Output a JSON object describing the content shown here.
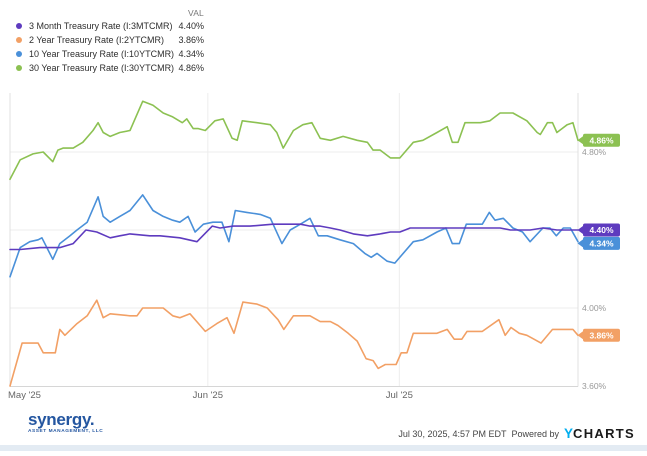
{
  "legend": {
    "val_header": "VAL",
    "items": [
      {
        "label": "3 Month Treasury Rate (I:3MTCMR)",
        "value": "4.40%",
        "color": "#5e3bbf"
      },
      {
        "label": "2 Year Treasury Rate (I:2YTCMR)",
        "value": "3.86%",
        "color": "#f2a065"
      },
      {
        "label": "10 Year Treasury Rate (I:10YTCMR)",
        "value": "4.34%",
        "color": "#4a90d9"
      },
      {
        "label": "30 Year Treasury Rate (I:30YTCMR)",
        "value": "4.86%",
        "color": "#8cc152"
      }
    ]
  },
  "chart_data": {
    "type": "line",
    "title": "",
    "xlabel": "",
    "ylabel": "",
    "x_axis": {
      "unit": "days since May 1 2025",
      "domain_days": [
        0,
        89
      ],
      "tick_labels": [
        "May '25",
        "Jun '25",
        "Jul '25"
      ],
      "tick_days": [
        0,
        31,
        61
      ]
    },
    "y_axis": {
      "unit": "%",
      "ylim": [
        3.55,
        5.1
      ],
      "tick_values": [
        4.8,
        4.4,
        4.0,
        3.6
      ],
      "tick_labels": [
        "4.80%",
        "4.40%",
        "4.00%",
        "3.60%"
      ],
      "side": "right"
    },
    "grid": true,
    "legend_position": "top-left",
    "series": [
      {
        "name": "30 Year Treasury Rate (I:30YTCMR)",
        "color": "#8cc152",
        "end_label": "4.86%",
        "end_value": 4.86,
        "points": [
          [
            0,
            4.66
          ],
          [
            1.6,
            4.76
          ],
          [
            3.6,
            4.79
          ],
          [
            5.2,
            4.8
          ],
          [
            6.7,
            4.75
          ],
          [
            7.5,
            4.81
          ],
          [
            8.3,
            4.82
          ],
          [
            9.9,
            4.82
          ],
          [
            11.4,
            4.85
          ],
          [
            13,
            4.91
          ],
          [
            13.8,
            4.95
          ],
          [
            14.6,
            4.9
          ],
          [
            15.7,
            4.88
          ],
          [
            17.2,
            4.9
          ],
          [
            18.8,
            4.91
          ],
          [
            20.8,
            5.06
          ],
          [
            22.4,
            5.04
          ],
          [
            24,
            5.0
          ],
          [
            25.5,
            4.98
          ],
          [
            27,
            4.95
          ],
          [
            27.7,
            4.97
          ],
          [
            28.7,
            4.92
          ],
          [
            29.5,
            4.92
          ],
          [
            30.6,
            4.91
          ],
          [
            32.1,
            4.96
          ],
          [
            33.4,
            4.97
          ],
          [
            34.8,
            4.87
          ],
          [
            35.6,
            4.86
          ],
          [
            36.4,
            4.96
          ],
          [
            38.7,
            4.95
          ],
          [
            40.8,
            4.94
          ],
          [
            41.8,
            4.9
          ],
          [
            42.8,
            4.82
          ],
          [
            44.4,
            4.91
          ],
          [
            45.9,
            4.94
          ],
          [
            47.3,
            4.95
          ],
          [
            48.6,
            4.87
          ],
          [
            50.2,
            4.86
          ],
          [
            52.2,
            4.88
          ],
          [
            54.4,
            4.86
          ],
          [
            56,
            4.85
          ],
          [
            56.9,
            4.81
          ],
          [
            58,
            4.81
          ],
          [
            59.6,
            4.77
          ],
          [
            61.1,
            4.77
          ],
          [
            63.2,
            4.85
          ],
          [
            64.7,
            4.86
          ],
          [
            66.9,
            4.9
          ],
          [
            68.5,
            4.93
          ],
          [
            69.3,
            4.85
          ],
          [
            70.2,
            4.85
          ],
          [
            71.3,
            4.95
          ],
          [
            73.7,
            4.95
          ],
          [
            75.2,
            4.96
          ],
          [
            76.8,
            5.0
          ],
          [
            78.8,
            5.0
          ],
          [
            81,
            4.96
          ],
          [
            82.6,
            4.9
          ],
          [
            83.1,
            4.89
          ],
          [
            84.2,
            4.95
          ],
          [
            85,
            4.95
          ],
          [
            85.7,
            4.9
          ],
          [
            87.3,
            4.94
          ],
          [
            88.2,
            4.95
          ],
          [
            89,
            4.86
          ]
        ]
      },
      {
        "name": "2 Year Treasury Rate (I:2YTCMR)",
        "color": "#f2a065",
        "end_label": "3.86%",
        "end_value": 3.86,
        "points": [
          [
            0,
            3.6
          ],
          [
            1.9,
            3.82
          ],
          [
            4.4,
            3.82
          ],
          [
            5.2,
            3.77
          ],
          [
            7.1,
            3.77
          ],
          [
            7.8,
            3.89
          ],
          [
            8.6,
            3.86
          ],
          [
            10.5,
            3.92
          ],
          [
            12.1,
            3.96
          ],
          [
            13.6,
            4.04
          ],
          [
            14.6,
            3.95
          ],
          [
            15.7,
            3.97
          ],
          [
            18.8,
            3.96
          ],
          [
            19.9,
            3.96
          ],
          [
            20.8,
            4.0
          ],
          [
            24,
            4.0
          ],
          [
            25.5,
            3.96
          ],
          [
            26.6,
            3.95
          ],
          [
            28.2,
            3.97
          ],
          [
            29.8,
            3.91
          ],
          [
            30.6,
            3.88
          ],
          [
            32.4,
            3.92
          ],
          [
            34,
            3.95
          ],
          [
            35.1,
            3.87
          ],
          [
            36.5,
            4.03
          ],
          [
            38.7,
            4.02
          ],
          [
            40.3,
            4.0
          ],
          [
            42,
            3.94
          ],
          [
            42.9,
            3.89
          ],
          [
            44.4,
            3.96
          ],
          [
            47,
            3.96
          ],
          [
            48.6,
            3.93
          ],
          [
            50.2,
            3.93
          ],
          [
            51.4,
            3.91
          ],
          [
            53,
            3.87
          ],
          [
            54.4,
            3.83
          ],
          [
            55.8,
            3.74
          ],
          [
            56.9,
            3.73
          ],
          [
            57.7,
            3.69
          ],
          [
            58.8,
            3.71
          ],
          [
            60.5,
            3.71
          ],
          [
            61.3,
            3.77
          ],
          [
            62.2,
            3.77
          ],
          [
            63.2,
            3.87
          ],
          [
            65,
            3.87
          ],
          [
            66.9,
            3.87
          ],
          [
            68.5,
            3.89
          ],
          [
            69.6,
            3.84
          ],
          [
            70.8,
            3.84
          ],
          [
            71.6,
            3.88
          ],
          [
            74,
            3.88
          ],
          [
            76.6,
            3.94
          ],
          [
            77.6,
            3.86
          ],
          [
            78.5,
            3.9
          ],
          [
            79.8,
            3.87
          ],
          [
            81,
            3.86
          ],
          [
            82.1,
            3.84
          ],
          [
            83.2,
            3.82
          ],
          [
            85,
            3.89
          ],
          [
            86.5,
            3.89
          ],
          [
            88.2,
            3.89
          ],
          [
            89,
            3.86
          ]
        ]
      },
      {
        "name": "10 Year Treasury Rate (I:10YTCMR)",
        "color": "#4a90d9",
        "end_label": "4.34%",
        "end_value": 4.34,
        "points": [
          [
            0,
            4.16
          ],
          [
            1.6,
            4.31
          ],
          [
            3.1,
            4.34
          ],
          [
            4.4,
            4.35
          ],
          [
            5,
            4.36
          ],
          [
            6.7,
            4.25
          ],
          [
            7.8,
            4.33
          ],
          [
            9.4,
            4.37
          ],
          [
            10.5,
            4.4
          ],
          [
            12.1,
            4.44
          ],
          [
            13.8,
            4.57
          ],
          [
            14.6,
            4.47
          ],
          [
            15.7,
            4.44
          ],
          [
            17.2,
            4.47
          ],
          [
            18.8,
            4.5
          ],
          [
            20.8,
            4.58
          ],
          [
            22.4,
            4.5
          ],
          [
            24,
            4.47
          ],
          [
            25.5,
            4.45
          ],
          [
            26.6,
            4.44
          ],
          [
            27.9,
            4.47
          ],
          [
            29,
            4.39
          ],
          [
            30.3,
            4.43
          ],
          [
            31.8,
            4.44
          ],
          [
            33.2,
            4.44
          ],
          [
            34.3,
            4.34
          ],
          [
            35.3,
            4.5
          ],
          [
            37.1,
            4.49
          ],
          [
            39.2,
            4.48
          ],
          [
            40.8,
            4.46
          ],
          [
            42.6,
            4.33
          ],
          [
            43.9,
            4.4
          ],
          [
            45.5,
            4.43
          ],
          [
            47,
            4.46
          ],
          [
            48.3,
            4.37
          ],
          [
            49.7,
            4.37
          ],
          [
            51.7,
            4.35
          ],
          [
            53.8,
            4.33
          ],
          [
            55.6,
            4.28
          ],
          [
            56.6,
            4.26
          ],
          [
            57.5,
            4.28
          ],
          [
            59.1,
            4.24
          ],
          [
            60.3,
            4.23
          ],
          [
            63.2,
            4.34
          ],
          [
            64.7,
            4.35
          ],
          [
            66.9,
            4.39
          ],
          [
            68.3,
            4.41
          ],
          [
            69.3,
            4.33
          ],
          [
            70.4,
            4.33
          ],
          [
            71.5,
            4.43
          ],
          [
            74,
            4.43
          ],
          [
            75.1,
            4.49
          ],
          [
            76,
            4.45
          ],
          [
            77.3,
            4.46
          ],
          [
            78.8,
            4.41
          ],
          [
            80.3,
            4.39
          ],
          [
            81.5,
            4.34
          ],
          [
            83.5,
            4.41
          ],
          [
            84.6,
            4.41
          ],
          [
            85.6,
            4.37
          ],
          [
            86.7,
            4.41
          ],
          [
            87.8,
            4.41
          ],
          [
            89,
            4.34
          ]
        ]
      },
      {
        "name": "3 Month Treasury Rate (I:3MTCMR)",
        "color": "#5e3bbf",
        "end_label": "4.40%",
        "end_value": 4.4,
        "points": [
          [
            0,
            4.3
          ],
          [
            1.6,
            4.3
          ],
          [
            4.7,
            4.31
          ],
          [
            7.8,
            4.31
          ],
          [
            9.9,
            4.33
          ],
          [
            11.9,
            4.4
          ],
          [
            13.6,
            4.39
          ],
          [
            15.7,
            4.36
          ],
          [
            17.2,
            4.37
          ],
          [
            18.8,
            4.38
          ],
          [
            21.9,
            4.37
          ],
          [
            23.5,
            4.37
          ],
          [
            26.6,
            4.36
          ],
          [
            29.3,
            4.34
          ],
          [
            31.7,
            4.42
          ],
          [
            32.9,
            4.41
          ],
          [
            35,
            4.42
          ],
          [
            37.6,
            4.42
          ],
          [
            41.2,
            4.43
          ],
          [
            42.8,
            4.43
          ],
          [
            45.5,
            4.43
          ],
          [
            47,
            4.42
          ],
          [
            48.6,
            4.42
          ],
          [
            50.2,
            4.41
          ],
          [
            51.7,
            4.4
          ],
          [
            53.8,
            4.38
          ],
          [
            56,
            4.37
          ],
          [
            58,
            4.38
          ],
          [
            59.6,
            4.39
          ],
          [
            61.1,
            4.39
          ],
          [
            62.7,
            4.41
          ],
          [
            64.3,
            4.41
          ],
          [
            67.4,
            4.41
          ],
          [
            70.5,
            4.41
          ],
          [
            73.7,
            4.41
          ],
          [
            76.8,
            4.41
          ],
          [
            78.4,
            4.4
          ],
          [
            79.9,
            4.4
          ],
          [
            81.5,
            4.4
          ],
          [
            83.5,
            4.41
          ],
          [
            85.7,
            4.4
          ],
          [
            87.8,
            4.4
          ],
          [
            89,
            4.4
          ]
        ]
      }
    ]
  },
  "branding": {
    "name": "synergy.",
    "sub": "ASSET MANAGEMENT, LLC"
  },
  "footer": {
    "timestamp": "Jul 30, 2025, 4:57 PM EDT",
    "powered_by": "Powered by",
    "logo_y": "Y",
    "logo_rest": "CHARTS"
  },
  "colors": {
    "grid": "#ededed",
    "plot_border": "#e0e0e0",
    "axis_bottom": "#d6d6d6",
    "tick_text": "#999999",
    "month_text": "#666666",
    "ycharts_blue": "#00aeef",
    "brand_blue": "#2456a0"
  }
}
